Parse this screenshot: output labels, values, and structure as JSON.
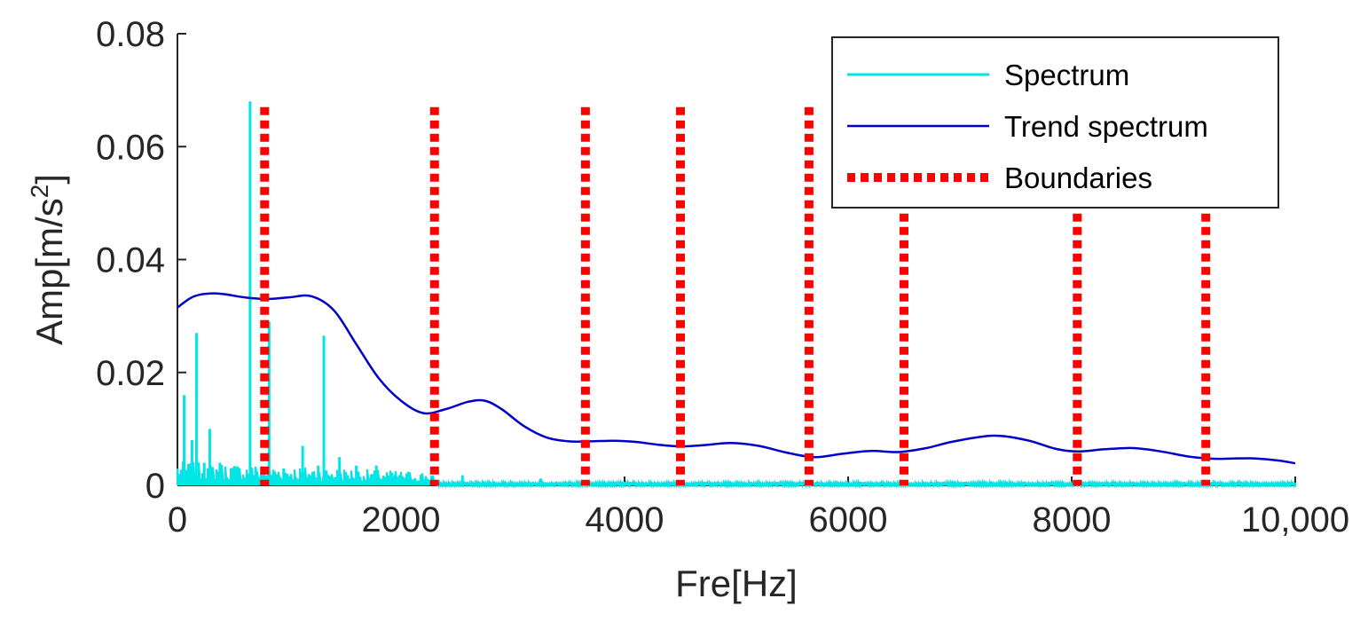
{
  "chart_data": {
    "type": "line",
    "xlabel": "Fre[Hz]",
    "ylabel_main": "Amp[m/s",
    "ylabel_sup": "2",
    "ylabel_end": "]",
    "xlim": [
      0,
      10000
    ],
    "ylim": [
      0,
      0.08
    ],
    "x_ticks": [
      0,
      2000,
      4000,
      6000,
      8000,
      10000
    ],
    "x_tick_labels": [
      "0",
      "2000",
      "4000",
      "6000",
      "8000",
      "10,000"
    ],
    "y_ticks": [
      0,
      0.02,
      0.04,
      0.06,
      0.08
    ],
    "y_tick_labels": [
      "0",
      "0.02",
      "0.04",
      "0.06",
      "0.08"
    ],
    "grid": false,
    "legend_position": "top-right",
    "series": [
      {
        "name": "Spectrum",
        "color": "#00e5e5",
        "style": "solid",
        "baseline": 0.0015,
        "peaks": [
          [
            60,
            0.016
          ],
          [
            130,
            0.008
          ],
          [
            170,
            0.027
          ],
          [
            240,
            0.004
          ],
          [
            290,
            0.01
          ],
          [
            380,
            0.004
          ],
          [
            490,
            0.0025
          ],
          [
            650,
            0.068
          ],
          [
            700,
            0.003
          ],
          [
            820,
            0.029
          ],
          [
            950,
            0.003
          ],
          [
            1120,
            0.007
          ],
          [
            1260,
            0.0035
          ],
          [
            1310,
            0.0265
          ],
          [
            1450,
            0.005
          ],
          [
            1600,
            0.0035
          ],
          [
            1780,
            0.0035
          ],
          [
            1950,
            0.002
          ],
          [
            2550,
            0.0018
          ],
          [
            3250,
            0.0012
          ]
        ]
      },
      {
        "name": "Trend spectrum",
        "color": "#0000c8",
        "style": "solid",
        "x": [
          0,
          150,
          350,
          600,
          800,
          1000,
          1200,
          1400,
          1600,
          1800,
          2000,
          2200,
          2400,
          2600,
          2750,
          2900,
          3100,
          3300,
          3500,
          3700,
          3900,
          4100,
          4300,
          4500,
          4700,
          4950,
          5200,
          5450,
          5700,
          5950,
          6200,
          6450,
          6700,
          6950,
          7300,
          7600,
          7850,
          8050,
          8300,
          8550,
          8800,
          9050,
          9300,
          9600,
          9850,
          10000
        ],
        "y": [
          0.0315,
          0.0335,
          0.034,
          0.0333,
          0.033,
          0.0333,
          0.0335,
          0.031,
          0.025,
          0.019,
          0.015,
          0.0128,
          0.0135,
          0.0148,
          0.015,
          0.0135,
          0.0105,
          0.0085,
          0.0078,
          0.0078,
          0.0079,
          0.0077,
          0.0072,
          0.0069,
          0.0071,
          0.0075,
          0.007,
          0.0058,
          0.005,
          0.0056,
          0.0061,
          0.0059,
          0.0066,
          0.0078,
          0.0088,
          0.008,
          0.0065,
          0.006,
          0.0064,
          0.0066,
          0.006,
          0.0051,
          0.0047,
          0.0048,
          0.0044,
          0.0039
        ]
      },
      {
        "name": "Boundaries",
        "color": "#ff0000",
        "style": "dotted",
        "x": [
          780,
          2300,
          3650,
          4500,
          5650,
          6500,
          8050,
          9200
        ],
        "top": 0.067
      }
    ]
  }
}
